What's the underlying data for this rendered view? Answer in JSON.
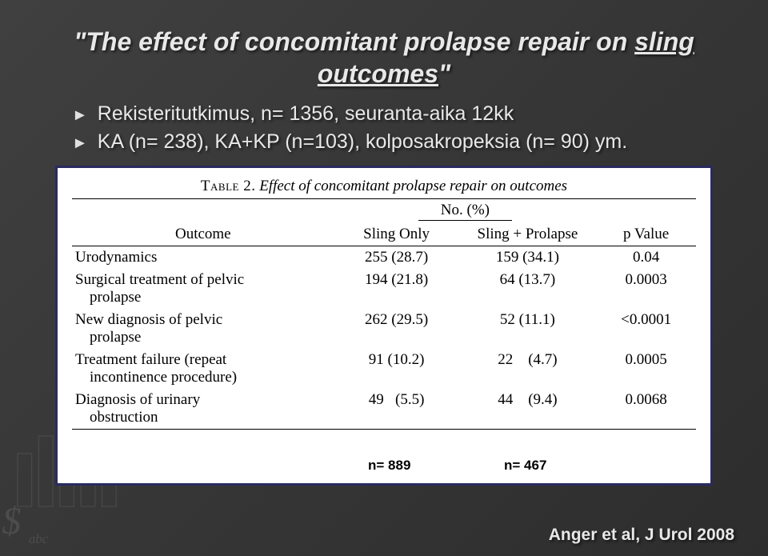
{
  "title": {
    "prefix": "\"The effect of concomitant prolapse repair on ",
    "underlined1": "sling",
    "mid": " ",
    "underlined2": "outcomes",
    "suffix": "\""
  },
  "bullets": [
    "Rekisteritutkimus, n= 1356, seuranta-aika 12kk",
    "KA (n= 238), KA+KP (n=103), kolposakropeksia (n= 90) ym."
  ],
  "table": {
    "caption_sc": "Table 2.",
    "caption_it": "Effect of concomitant prolapse repair on outcomes",
    "super_header": "No. (%)",
    "headers": {
      "outcome": "Outcome",
      "a": "Sling Only",
      "b": "Sling + Prolapse",
      "p": "p Value"
    },
    "rows": [
      {
        "label": "Urodynamics",
        "a": "255 (28.7)",
        "b": "159 (34.1)",
        "p": "0.04"
      },
      {
        "label": "Surgical treatment of pelvic prolapse",
        "label_wrap": [
          "Surgical treatment of pelvic",
          "prolapse"
        ],
        "a": "194 (21.8)",
        "b": "64 (13.7)",
        "p": "0.0003"
      },
      {
        "label": "New diagnosis of pelvic prolapse",
        "label_wrap": [
          "New diagnosis of pelvic",
          "prolapse"
        ],
        "a": "262 (29.5)",
        "b": "52 (11.1)",
        "p": "<0.0001"
      },
      {
        "label": "Treatment failure (repeat incontinence procedure)",
        "label_wrap": [
          "Treatment failure (repeat",
          "incontinence procedure)"
        ],
        "a": "91 (10.2)",
        "b": "22 (4.7)",
        "p": "0.0005"
      },
      {
        "label": "Diagnosis of urinary obstruction",
        "label_wrap": [
          "Diagnosis of urinary",
          "obstruction"
        ],
        "a": "49  (5.5)",
        "b": "44 (9.4)",
        "p": "0.0068"
      }
    ],
    "n_a": "n= 889",
    "n_b": "n= 467"
  },
  "citation": "Anger et al, J Urol 2008",
  "colors": {
    "frame_border": "#2a2a60",
    "text_light": "#e8e8e8",
    "bg": "#3a3a3a"
  }
}
